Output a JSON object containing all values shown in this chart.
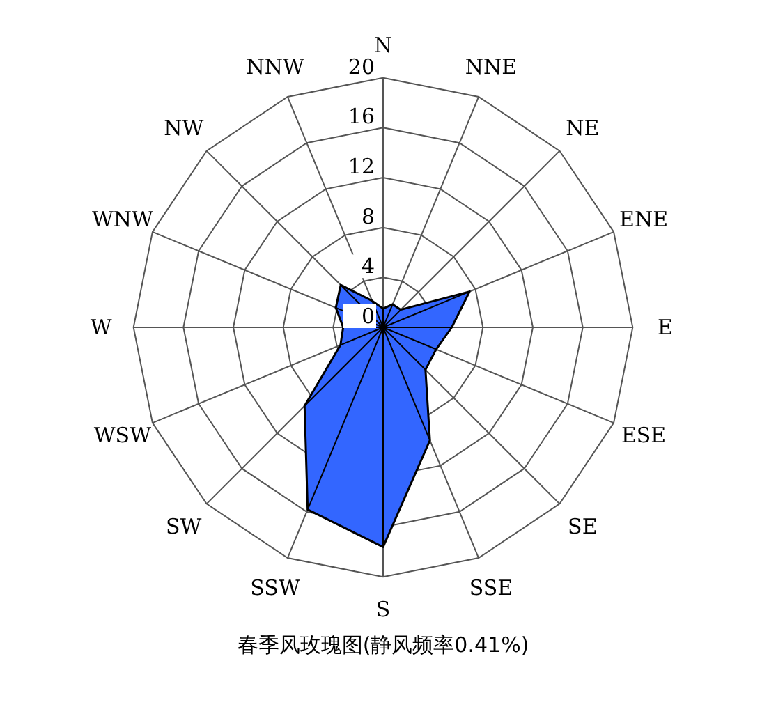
{
  "chart_data": {
    "type": "radar",
    "title": "春季风玫瑰图(静风频率0.41%)",
    "categories": [
      "N",
      "NNE",
      "NE",
      "ENE",
      "E",
      "ESE",
      "SE",
      "SSE",
      "S",
      "SSW",
      "SW",
      "WSW",
      "W",
      "WNW",
      "NW",
      "NNW"
    ],
    "series": [
      {
        "color": "#3366ff",
        "values": [
          1.5,
          2,
          2,
          7.5,
          5.5,
          4.6,
          4.8,
          9.8,
          17.6,
          15.8,
          8.9,
          3.7,
          3.2,
          4.1,
          4.8,
          2.3
        ]
      }
    ],
    "ylim": [
      0,
      20
    ],
    "yticks": [
      0,
      4,
      8,
      12,
      16,
      20
    ],
    "grid": true
  }
}
